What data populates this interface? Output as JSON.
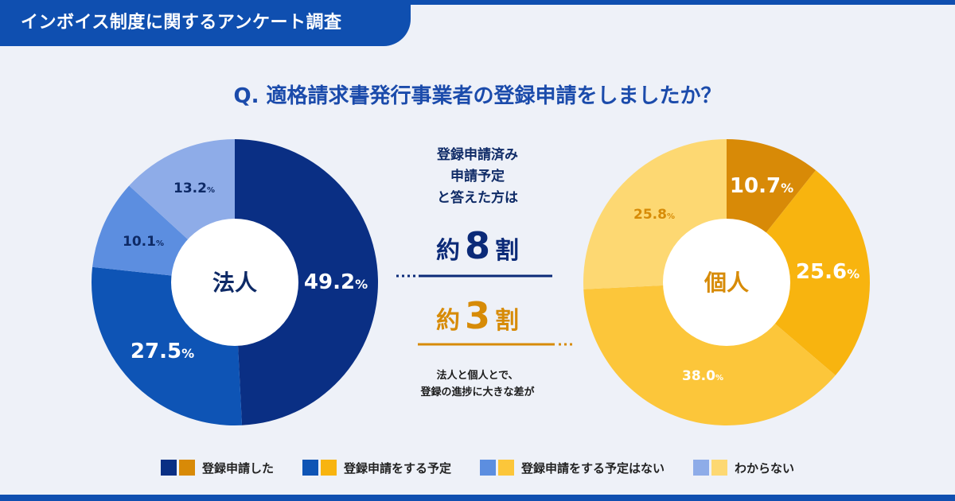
{
  "header": {
    "title": "インボイス制度に関するアンケート調査"
  },
  "question": "Q. 適格請求書発行事業者の登録申請をしましたか？",
  "center": {
    "note_lines": [
      "登録申請済み",
      "申請予定",
      "と答えた方は"
    ],
    "corp_ratio": {
      "prefix": "約",
      "number": "8",
      "suffix": "割"
    },
    "individual_ratio": {
      "prefix": "約",
      "number": "3",
      "suffix": "割"
    },
    "footnote_lines": [
      "法人と個人とで、",
      "登録の進捗に大きな差が"
    ]
  },
  "colors": {
    "corp": [
      "#0a2f84",
      "#0e54b5",
      "#5c8ee0",
      "#8eace8"
    ],
    "individual": [
      "#d88a07",
      "#f8b40f",
      "#fcc63a",
      "#fdd872"
    ],
    "corp_line": "#0b2a78",
    "individual_line": "#d78b07"
  },
  "chart_data": [
    {
      "type": "pie",
      "title": "法人",
      "categories": [
        "登録申請した",
        "登録申請をする予定",
        "登録申請をする予定はない",
        "わからない"
      ],
      "values": [
        49.2,
        27.5,
        10.1,
        13.2
      ],
      "labels": [
        "49.2",
        "27.5",
        "10.1",
        "13.2"
      ],
      "unit": "%"
    },
    {
      "type": "pie",
      "title": "個人",
      "categories": [
        "登録申請した",
        "登録申請をする予定",
        "登録申請をする予定はない",
        "わからない"
      ],
      "values": [
        10.7,
        25.6,
        38.0,
        25.8
      ],
      "labels": [
        "10.7",
        "25.6",
        "38.0",
        "25.8"
      ],
      "unit": "%"
    }
  ],
  "legend": [
    {
      "label": "登録申請した"
    },
    {
      "label": "登録申請をする予定"
    },
    {
      "label": "登録申請をする予定はない"
    },
    {
      "label": "わからない"
    }
  ]
}
